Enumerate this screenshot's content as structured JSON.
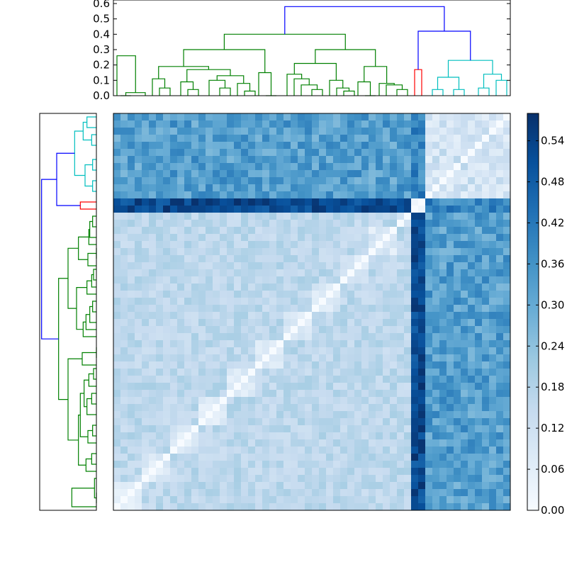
{
  "chart_data": [
    {
      "type": "dendrogram",
      "orientation": "top",
      "ylim": [
        0,
        0.6
      ],
      "yticks": [
        0.0,
        0.1,
        0.2,
        0.3,
        0.4,
        0.5,
        0.6
      ],
      "ytick_labels": [
        "0.0",
        "0.1",
        "0.2",
        "0.3",
        "0.4",
        "0.5",
        "0.6"
      ],
      "leaf_count": 56,
      "cluster_colors": [
        "green",
        "red",
        "cyan",
        "blue"
      ],
      "links": [
        {
          "a": 0.5,
          "b": 2.0,
          "h": 0.0,
          "ha": 0.0,
          "hb": 0.0,
          "c": "#008000"
        },
        {
          "a": 1.25,
          "b": 4.0,
          "h": 0.02,
          "ha": 0.0,
          "hb": 0.0,
          "c": "#008000"
        },
        {
          "a": 0.0,
          "b": 2.625,
          "h": 0.26,
          "ha": 0.0,
          "hb": 0.02,
          "c": "#008000"
        },
        {
          "a": 6.0,
          "b": 7.5,
          "h": 0.05,
          "ha": 0.0,
          "hb": 0.0,
          "c": "#008000"
        },
        {
          "a": 5.0,
          "b": 6.75,
          "h": 0.11,
          "ha": 0.0,
          "hb": 0.05,
          "c": "#008000"
        },
        {
          "a": 10.0,
          "b": 11.5,
          "h": 0.04,
          "ha": 0.0,
          "hb": 0.0,
          "c": "#008000"
        },
        {
          "a": 9.0,
          "b": 10.75,
          "h": 0.09,
          "ha": 0.0,
          "hb": 0.04,
          "c": "#008000"
        },
        {
          "a": 14.5,
          "b": 16.0,
          "h": 0.05,
          "ha": 0.0,
          "hb": 0.0,
          "c": "#008000"
        },
        {
          "a": 13.0,
          "b": 15.25,
          "h": 0.1,
          "ha": 0.0,
          "hb": 0.05,
          "c": "#008000"
        },
        {
          "a": 18.0,
          "b": 19.5,
          "h": 0.03,
          "ha": 0.0,
          "hb": 0.0,
          "c": "#008000"
        },
        {
          "a": 17.0,
          "b": 18.75,
          "h": 0.08,
          "ha": 0.0,
          "hb": 0.03,
          "c": "#008000"
        },
        {
          "a": 14.125,
          "b": 17.875,
          "h": 0.13,
          "ha": 0.1,
          "hb": 0.08,
          "c": "#008000"
        },
        {
          "a": 9.875,
          "b": 16.0,
          "h": 0.17,
          "ha": 0.09,
          "hb": 0.13,
          "c": "#008000"
        },
        {
          "a": 5.875,
          "b": 12.9375,
          "h": 0.19,
          "ha": 0.11,
          "hb": 0.17,
          "c": "#008000"
        },
        {
          "a": 21.0,
          "b": 22.5,
          "h": 0.0,
          "ha": 0.0,
          "hb": 0.0,
          "c": "#008000"
        },
        {
          "a": 20.0,
          "b": 21.75,
          "h": 0.15,
          "ha": 0.0,
          "hb": 0.0,
          "c": "#008000"
        },
        {
          "a": 9.40625,
          "b": 20.875,
          "h": 0.3,
          "ha": 0.19,
          "hb": 0.15,
          "c": "#008000"
        },
        {
          "a": 27.5,
          "b": 29.0,
          "h": 0.04,
          "ha": 0.0,
          "hb": 0.0,
          "c": "#008000"
        },
        {
          "a": 26.0,
          "b": 28.25,
          "h": 0.07,
          "ha": 0.0,
          "hb": 0.04,
          "c": "#008000"
        },
        {
          "a": 25.0,
          "b": 27.125,
          "h": 0.11,
          "ha": 0.0,
          "hb": 0.07,
          "c": "#008000"
        },
        {
          "a": 24.0,
          "b": 26.0625,
          "h": 0.14,
          "ha": 0.0,
          "hb": 0.11,
          "c": "#008000"
        },
        {
          "a": 32.0,
          "b": 33.5,
          "h": 0.03,
          "ha": 0.0,
          "hb": 0.0,
          "c": "#008000"
        },
        {
          "a": 31.0,
          "b": 32.75,
          "h": 0.05,
          "ha": 0.0,
          "hb": 0.03,
          "c": "#008000"
        },
        {
          "a": 30.0,
          "b": 31.875,
          "h": 0.1,
          "ha": 0.0,
          "hb": 0.05,
          "c": "#008000"
        },
        {
          "a": 25.03125,
          "b": 30.9375,
          "h": 0.21,
          "ha": 0.14,
          "hb": 0.1,
          "c": "#008000"
        },
        {
          "a": 35.0,
          "b": 36.5,
          "h": 0.0,
          "ha": 0.0,
          "hb": 0.0,
          "c": "#008000"
        },
        {
          "a": 34.0,
          "b": 35.75,
          "h": 0.09,
          "ha": 0.0,
          "hb": 0.0,
          "c": "#008000"
        },
        {
          "a": 39.5,
          "b": 41.0,
          "h": 0.04,
          "ha": 0.0,
          "hb": 0.0,
          "c": "#008000"
        },
        {
          "a": 38.0,
          "b": 40.25,
          "h": 0.07,
          "ha": 0.0,
          "hb": 0.04,
          "c": "#008000"
        },
        {
          "a": 37.0,
          "b": 39.125,
          "h": 0.08,
          "ha": 0.0,
          "hb": 0.07,
          "c": "#008000"
        },
        {
          "a": 34.875,
          "b": 38.0625,
          "h": 0.19,
          "ha": 0.09,
          "hb": 0.08,
          "c": "#008000"
        },
        {
          "a": 27.984375,
          "b": 36.46875,
          "h": 0.3,
          "ha": 0.21,
          "hb": 0.19,
          "c": "#008000"
        },
        {
          "a": 15.140625,
          "b": 32.2265625,
          "h": 0.4,
          "ha": 0.3,
          "hb": 0.3,
          "c": "#008000"
        },
        {
          "a": 42.0,
          "b": 43.0,
          "h": 0.17,
          "ha": 0.0,
          "hb": 0.0,
          "c": "#ff0000"
        },
        {
          "a": 44.5,
          "b": 46.0,
          "h": 0.04,
          "ha": 0.0,
          "hb": 0.0,
          "c": "#00bfbf"
        },
        {
          "a": 47.5,
          "b": 49.0,
          "h": 0.04,
          "ha": 0.0,
          "hb": 0.0,
          "c": "#00bfbf"
        },
        {
          "a": 45.25,
          "b": 48.25,
          "h": 0.12,
          "ha": 0.04,
          "hb": 0.04,
          "c": "#00bfbf"
        },
        {
          "a": 51.0,
          "b": 52.5,
          "h": 0.05,
          "ha": 0.0,
          "hb": 0.0,
          "c": "#00bfbf"
        },
        {
          "a": 53.5,
          "b": 55.0,
          "h": 0.1,
          "ha": 0.0,
          "hb": 0.0,
          "c": "#00bfbf"
        },
        {
          "a": 51.75,
          "b": 54.25,
          "h": 0.14,
          "ha": 0.05,
          "hb": 0.1,
          "c": "#00bfbf"
        },
        {
          "a": 46.75,
          "b": 53.0,
          "h": 0.23,
          "ha": 0.12,
          "hb": 0.14,
          "c": "#00bfbf"
        },
        {
          "a": 42.5,
          "b": 49.875,
          "h": 0.42,
          "ha": 0.17,
          "hb": 0.23,
          "c": "#0000ff"
        },
        {
          "a": 23.68,
          "b": 46.19,
          "h": 0.58,
          "ha": 0.4,
          "hb": 0.42,
          "c": "#0000ff"
        }
      ]
    },
    {
      "type": "dendrogram",
      "orientation": "left",
      "leaf_count": 56,
      "note_order": "same tree as top dendrogram, leaves listed bottom to top"
    },
    {
      "type": "heatmap",
      "rows": 56,
      "cols": 56,
      "colormap": "Blues",
      "vmin": 0.0,
      "vmax": 0.58,
      "colorbar_ticks": [
        0.0,
        0.06,
        0.12,
        0.18,
        0.24,
        0.3,
        0.36,
        0.42,
        0.48,
        0.54
      ],
      "colorbar_labels": [
        "0.00",
        "0.06",
        "0.12",
        "0.18",
        "0.24",
        "0.30",
        "0.36",
        "0.42",
        "0.48",
        "0.54"
      ],
      "diagonal": "mirrored (cell [i][j] dark-to-light diagonal runs bottom-left to top-right)"
    }
  ]
}
